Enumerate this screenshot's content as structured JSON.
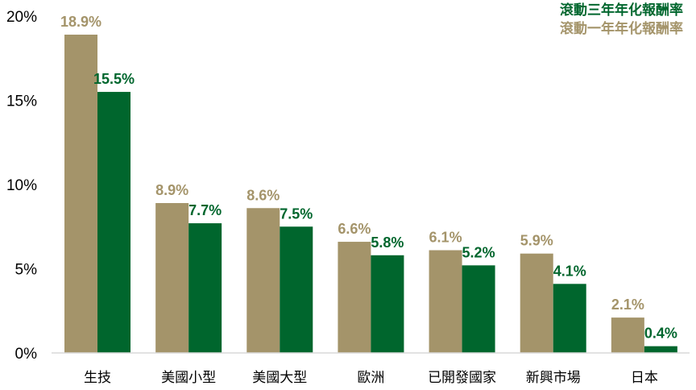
{
  "chart_data": {
    "type": "bar",
    "categories": [
      "生技",
      "美國小型",
      "美國大型",
      "歐洲",
      "已開發國家",
      "新興市場",
      "日本"
    ],
    "series": [
      {
        "name": "滾動一年年化報酬率",
        "values": [
          18.9,
          8.9,
          8.6,
          6.6,
          6.1,
          5.9,
          2.1
        ],
        "color": "#a4946a"
      },
      {
        "name": "滾動三年年化報酬率",
        "values": [
          15.5,
          7.7,
          7.5,
          5.8,
          5.2,
          4.1,
          0.4
        ],
        "color": "#00662d"
      }
    ],
    "ylim": [
      0,
      20
    ],
    "yticks": [
      "0%",
      "5%",
      "10%",
      "15%",
      "20%"
    ],
    "value_suffix": "%",
    "legend_position": "top-right",
    "legend_order": [
      1,
      0
    ],
    "grid": false
  }
}
